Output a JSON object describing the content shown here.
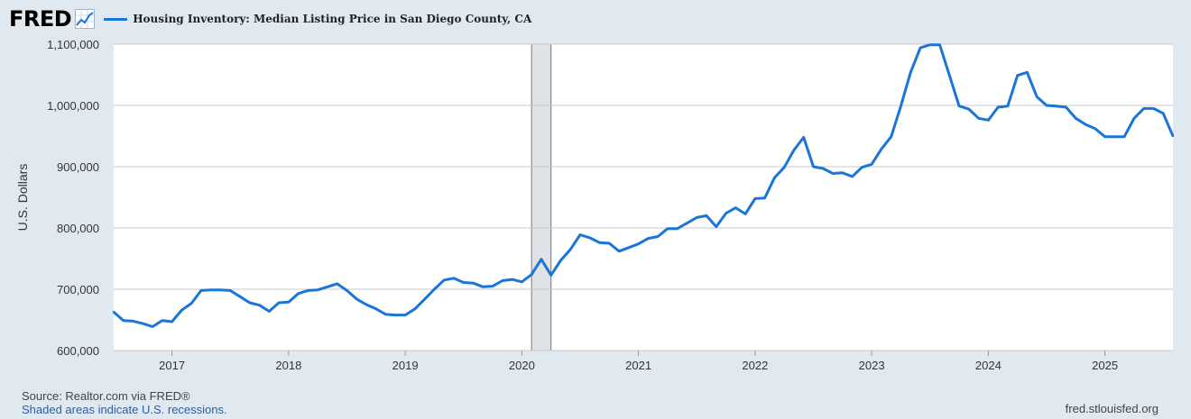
{
  "header": {
    "logo_text": "FRED",
    "logo_icon": "chart-trend-icon"
  },
  "chart_data": {
    "type": "line",
    "title": "",
    "legend_label": "Housing Inventory: Median Listing Price in San Diego County, CA",
    "ylabel": "U.S. Dollars",
    "xlabel": "",
    "ylim": [
      600000,
      1100000
    ],
    "yticks": [
      {
        "value": 600000,
        "label": "600,000"
      },
      {
        "value": 700000,
        "label": "700,000"
      },
      {
        "value": 800000,
        "label": "800,000"
      },
      {
        "value": 900000,
        "label": "900,000"
      },
      {
        "value": 1000000,
        "label": "1,000,000"
      },
      {
        "value": 1100000,
        "label": "1,100,000"
      }
    ],
    "xlim": [
      "2016-07-01",
      "2025-08-01"
    ],
    "xticks": [
      "2017",
      "2018",
      "2019",
      "2020",
      "2021",
      "2022",
      "2023",
      "2024",
      "2025"
    ],
    "recessions": [
      {
        "start": "2020-02-01",
        "end": "2020-04-01"
      }
    ],
    "grid": "horizontal",
    "legend_position": "top",
    "colors": {
      "series": "#1a75d9",
      "recession": "#dfe2e6",
      "background": "#e1e9f0",
      "plot": "#ffffff",
      "grid": "#c8c8c8"
    },
    "series": [
      {
        "name": "Housing Inventory: Median Listing Price in San Diego County, CA",
        "x": [
          "2016-07",
          "2016-08",
          "2016-09",
          "2016-10",
          "2016-11",
          "2016-12",
          "2017-01",
          "2017-02",
          "2017-03",
          "2017-04",
          "2017-05",
          "2017-06",
          "2017-07",
          "2017-08",
          "2017-09",
          "2017-10",
          "2017-11",
          "2017-12",
          "2018-01",
          "2018-02",
          "2018-03",
          "2018-04",
          "2018-05",
          "2018-06",
          "2018-07",
          "2018-08",
          "2018-09",
          "2018-10",
          "2018-11",
          "2018-12",
          "2019-01",
          "2019-02",
          "2019-03",
          "2019-04",
          "2019-05",
          "2019-06",
          "2019-07",
          "2019-08",
          "2019-09",
          "2019-10",
          "2019-11",
          "2019-12",
          "2020-01",
          "2020-02",
          "2020-03",
          "2020-04",
          "2020-05",
          "2020-06",
          "2020-07",
          "2020-08",
          "2020-09",
          "2020-10",
          "2020-11",
          "2020-12",
          "2021-01",
          "2021-02",
          "2021-03",
          "2021-04",
          "2021-05",
          "2021-06",
          "2021-07",
          "2021-08",
          "2021-09",
          "2021-10",
          "2021-11",
          "2021-12",
          "2022-01",
          "2022-02",
          "2022-03",
          "2022-04",
          "2022-05",
          "2022-06",
          "2022-07",
          "2022-08",
          "2022-09",
          "2022-10",
          "2022-11",
          "2022-12",
          "2023-01",
          "2023-02",
          "2023-03",
          "2023-04",
          "2023-05",
          "2023-06",
          "2023-07",
          "2023-08",
          "2023-09",
          "2023-10",
          "2023-11",
          "2023-12",
          "2024-01",
          "2024-02",
          "2024-03",
          "2024-04",
          "2024-05",
          "2024-06",
          "2024-07",
          "2024-08",
          "2024-09",
          "2024-10",
          "2024-11",
          "2024-12",
          "2025-01",
          "2025-02",
          "2025-03",
          "2025-04",
          "2025-05",
          "2025-06",
          "2025-07",
          "2025-08"
        ],
        "values": [
          663000,
          649000,
          648000,
          644000,
          639000,
          649000,
          647000,
          666000,
          677000,
          698000,
          699000,
          699000,
          698000,
          688000,
          678000,
          674000,
          664000,
          678000,
          679000,
          693000,
          698000,
          699000,
          704000,
          709000,
          698000,
          684000,
          675000,
          668000,
          659000,
          658000,
          658000,
          668000,
          684000,
          700000,
          715000,
          718000,
          711000,
          710000,
          704000,
          705000,
          714000,
          716000,
          712000,
          724000,
          749000,
          723000,
          747000,
          765000,
          789000,
          784000,
          776000,
          775000,
          762000,
          768000,
          774000,
          783000,
          786000,
          799000,
          799000,
          808000,
          817000,
          820000,
          802000,
          824000,
          833000,
          823000,
          848000,
          849000,
          882000,
          899000,
          927000,
          948000,
          900000,
          897000,
          889000,
          890000,
          884000,
          899000,
          904000,
          929000,
          949000,
          999000,
          1054000,
          1094000,
          1099000,
          1099000,
          1049000,
          999000,
          994000,
          979000,
          976000,
          997000,
          999000,
          1049000,
          1054000,
          1014000,
          1000000,
          999000,
          997000,
          979000,
          969000,
          962000,
          949000,
          949000,
          949000,
          979000,
          995000,
          995000,
          987000,
          950000
        ]
      }
    ]
  },
  "footer": {
    "source": "Source: Realtor.com via FRED®",
    "recession_note": "Shaded areas indicate U.S. recessions.",
    "site": "fred.stlouisfed.org"
  }
}
